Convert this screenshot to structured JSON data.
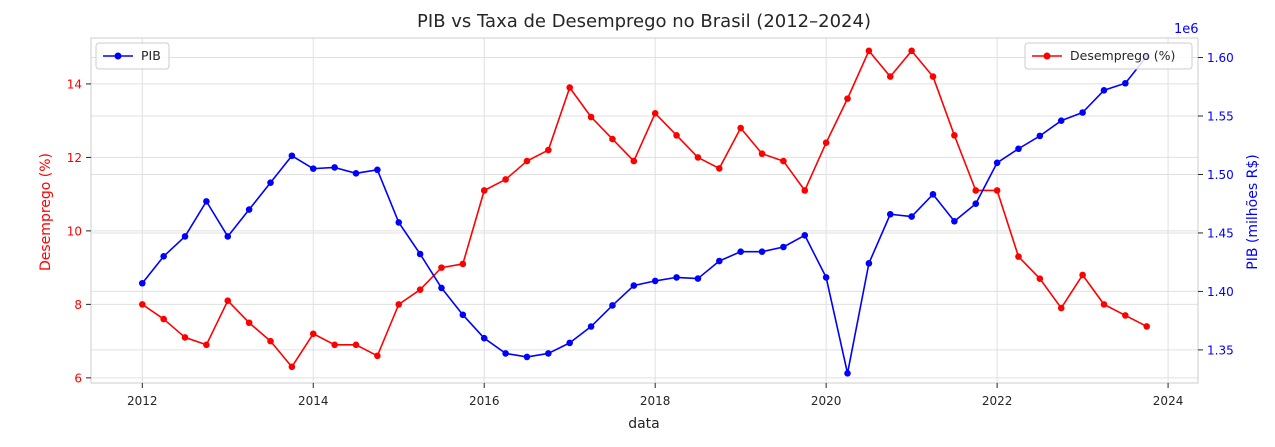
{
  "chart_data": {
    "type": "line",
    "title": "PIB vs Taxa de Desemprego no Brasil (2012–2024)",
    "xlabel": "data",
    "ylabel_left": "Desemprego (%)",
    "ylabel_right": "PIB (milhões R$)",
    "right_axis_multiplier": "1e6",
    "x_ticks": [
      2012,
      2014,
      2016,
      2018,
      2020,
      2022,
      2024
    ],
    "x_range": [
      2011.4,
      2024.35
    ],
    "y_left_ticks": [
      6,
      8,
      10,
      12,
      14
    ],
    "y_left_range": [
      5.86,
      15.25
    ],
    "y_right_ticks": [
      1.35,
      1.4,
      1.45,
      1.5,
      1.55,
      1.6
    ],
    "y_right_range": [
      1.3217,
      1.6167
    ],
    "grid": true,
    "legends": [
      {
        "label": "PIB",
        "placement": "upper-left"
      },
      {
        "label": "Desemprego (%)",
        "placement": "upper-right"
      }
    ],
    "x": [
      2012.0,
      2012.25,
      2012.5,
      2012.75,
      2013.0,
      2013.25,
      2013.5,
      2013.75,
      2014.0,
      2014.25,
      2014.5,
      2014.75,
      2015.0,
      2015.25,
      2015.5,
      2015.75,
      2016.0,
      2016.25,
      2016.5,
      2016.75,
      2017.0,
      2017.25,
      2017.5,
      2017.75,
      2018.0,
      2018.25,
      2018.5,
      2018.75,
      2019.0,
      2019.25,
      2019.5,
      2019.75,
      2020.0,
      2020.25,
      2020.5,
      2020.75,
      2021.0,
      2021.25,
      2021.5,
      2021.75,
      2022.0,
      2022.25,
      2022.5,
      2022.75,
      2023.0,
      2023.25,
      2023.5,
      2023.75
    ],
    "series": [
      {
        "name": "Desemprego (%)",
        "axis": "left",
        "color": "#ff0000",
        "values": [
          8.0,
          7.6,
          7.1,
          6.9,
          8.1,
          7.5,
          7.0,
          6.3,
          7.2,
          6.9,
          6.9,
          6.6,
          8.0,
          8.4,
          9.0,
          9.1,
          11.1,
          11.4,
          11.9,
          12.2,
          13.9,
          13.1,
          12.5,
          11.9,
          13.2,
          12.6,
          12.0,
          11.7,
          12.8,
          12.1,
          11.9,
          11.1,
          12.4,
          13.6,
          14.9,
          14.2,
          14.9,
          14.2,
          12.6,
          11.1,
          11.1,
          9.3,
          8.7,
          7.9,
          8.8,
          8.0,
          7.7,
          7.4
        ]
      },
      {
        "name": "PIB",
        "axis": "right",
        "color": "#0000ff",
        "values": [
          1.407,
          1.43,
          1.447,
          1.477,
          1.447,
          1.47,
          1.493,
          1.516,
          1.505,
          1.506,
          1.501,
          1.504,
          1.459,
          1.432,
          1.403,
          1.38,
          1.36,
          1.347,
          1.344,
          1.347,
          1.356,
          1.37,
          1.388,
          1.405,
          1.409,
          1.412,
          1.411,
          1.426,
          1.434,
          1.434,
          1.438,
          1.448,
          1.412,
          1.33,
          1.424,
          1.466,
          1.464,
          1.483,
          1.46,
          1.475,
          1.51,
          1.522,
          1.533,
          1.546,
          1.553,
          1.572,
          1.578,
          1.601
        ]
      }
    ]
  }
}
